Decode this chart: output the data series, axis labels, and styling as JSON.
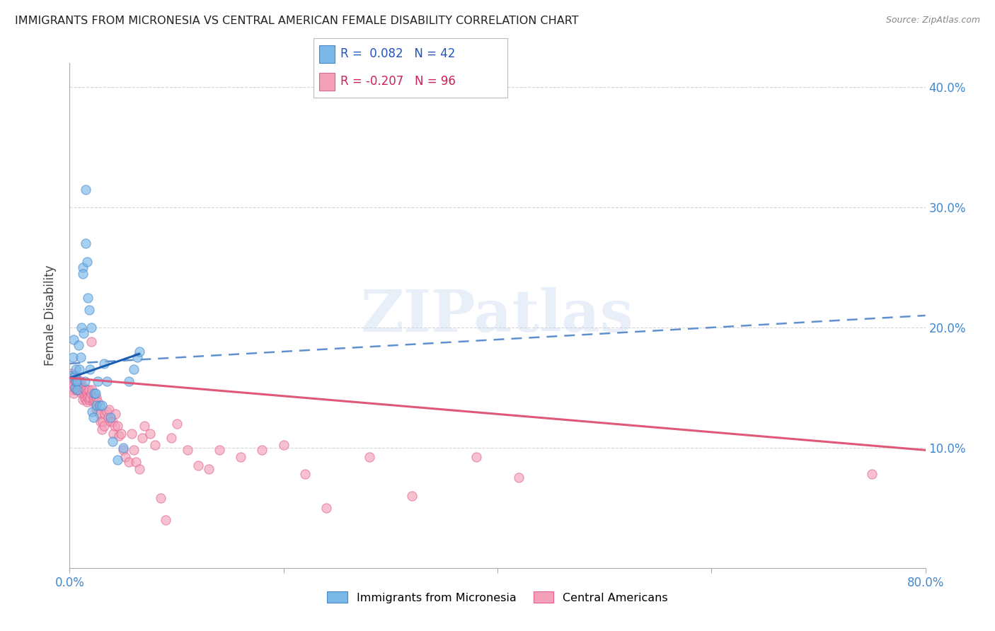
{
  "title": "IMMIGRANTS FROM MICRONESIA VS CENTRAL AMERICAN FEMALE DISABILITY CORRELATION CHART",
  "source": "Source: ZipAtlas.com",
  "ylabel": "Female Disability",
  "xlim": [
    0.0,
    0.8
  ],
  "ylim": [
    0.0,
    0.42
  ],
  "yticks": [
    0.1,
    0.2,
    0.3,
    0.4
  ],
  "xtick_labels": [
    "0.0%",
    "",
    "",
    "",
    "80.0%"
  ],
  "xtick_vals": [
    0.0,
    0.2,
    0.4,
    0.6,
    0.8
  ],
  "legend_entries": [
    {
      "label": "Immigrants from Micronesia",
      "R": "0.082",
      "N": "42"
    },
    {
      "label": "Central Americans",
      "R": "-0.207",
      "N": "96"
    }
  ],
  "blue_scatter_x": [
    0.002,
    0.003,
    0.004,
    0.005,
    0.005,
    0.006,
    0.006,
    0.007,
    0.007,
    0.008,
    0.009,
    0.01,
    0.011,
    0.012,
    0.012,
    0.013,
    0.014,
    0.015,
    0.015,
    0.016,
    0.017,
    0.018,
    0.019,
    0.02,
    0.021,
    0.022,
    0.023,
    0.024,
    0.025,
    0.026,
    0.028,
    0.03,
    0.032,
    0.035,
    0.038,
    0.04,
    0.045,
    0.05,
    0.055,
    0.06,
    0.063,
    0.065
  ],
  "blue_scatter_y": [
    0.16,
    0.175,
    0.19,
    0.16,
    0.15,
    0.165,
    0.155,
    0.155,
    0.148,
    0.185,
    0.165,
    0.175,
    0.2,
    0.25,
    0.245,
    0.195,
    0.155,
    0.27,
    0.315,
    0.255,
    0.225,
    0.215,
    0.165,
    0.2,
    0.13,
    0.125,
    0.145,
    0.145,
    0.135,
    0.155,
    0.135,
    0.135,
    0.17,
    0.155,
    0.125,
    0.105,
    0.09,
    0.1,
    0.155,
    0.165,
    0.175,
    0.18
  ],
  "pink_scatter_x": [
    0.001,
    0.002,
    0.002,
    0.003,
    0.003,
    0.004,
    0.004,
    0.005,
    0.005,
    0.006,
    0.006,
    0.006,
    0.007,
    0.007,
    0.007,
    0.008,
    0.008,
    0.009,
    0.009,
    0.01,
    0.01,
    0.01,
    0.011,
    0.011,
    0.012,
    0.012,
    0.013,
    0.013,
    0.014,
    0.014,
    0.015,
    0.015,
    0.016,
    0.016,
    0.017,
    0.017,
    0.018,
    0.018,
    0.019,
    0.02,
    0.02,
    0.021,
    0.022,
    0.022,
    0.023,
    0.024,
    0.025,
    0.025,
    0.026,
    0.027,
    0.028,
    0.029,
    0.03,
    0.031,
    0.032,
    0.033,
    0.035,
    0.036,
    0.037,
    0.038,
    0.04,
    0.041,
    0.042,
    0.043,
    0.045,
    0.046,
    0.048,
    0.05,
    0.052,
    0.055,
    0.058,
    0.06,
    0.062,
    0.065,
    0.068,
    0.07,
    0.075,
    0.08,
    0.085,
    0.09,
    0.095,
    0.1,
    0.11,
    0.12,
    0.13,
    0.14,
    0.16,
    0.18,
    0.2,
    0.22,
    0.24,
    0.28,
    0.32,
    0.38,
    0.42,
    0.75
  ],
  "pink_scatter_y": [
    0.158,
    0.155,
    0.162,
    0.148,
    0.158,
    0.152,
    0.145,
    0.158,
    0.15,
    0.148,
    0.155,
    0.16,
    0.148,
    0.155,
    0.15,
    0.148,
    0.152,
    0.148,
    0.155,
    0.15,
    0.148,
    0.155,
    0.15,
    0.145,
    0.148,
    0.14,
    0.145,
    0.15,
    0.142,
    0.148,
    0.148,
    0.14,
    0.145,
    0.138,
    0.142,
    0.148,
    0.148,
    0.14,
    0.142,
    0.188,
    0.145,
    0.148,
    0.142,
    0.138,
    0.14,
    0.138,
    0.132,
    0.142,
    0.138,
    0.13,
    0.128,
    0.122,
    0.115,
    0.122,
    0.118,
    0.128,
    0.13,
    0.125,
    0.132,
    0.122,
    0.122,
    0.112,
    0.118,
    0.128,
    0.118,
    0.11,
    0.112,
    0.098,
    0.092,
    0.088,
    0.112,
    0.098,
    0.088,
    0.082,
    0.108,
    0.118,
    0.112,
    0.102,
    0.058,
    0.04,
    0.108,
    0.12,
    0.098,
    0.085,
    0.082,
    0.098,
    0.092,
    0.098,
    0.102,
    0.078,
    0.05,
    0.092,
    0.06,
    0.092,
    0.075,
    0.078
  ],
  "blue_line_x": [
    0.0,
    0.065
  ],
  "blue_line_y": [
    0.158,
    0.178
  ],
  "dashed_line_x": [
    0.0,
    0.8
  ],
  "dashed_line_y": [
    0.17,
    0.21
  ],
  "pink_line_x": [
    0.0,
    0.8
  ],
  "pink_line_y": [
    0.158,
    0.098
  ],
  "blue_line_color": "#1a5cb0",
  "dashed_line_color": "#6090d0",
  "pink_line_color": "#e05878",
  "scatter_blue_color": "#7ab8e8",
  "scatter_blue_edge": "#4488cc",
  "scatter_pink_color": "#f4a0b8",
  "scatter_pink_edge": "#e06090",
  "scatter_size": 90,
  "scatter_alpha": 0.65,
  "background_color": "#ffffff",
  "grid_color": "#cccccc",
  "title_color": "#222222",
  "axis_label_color": "#444444",
  "tick_color": "#4488cc",
  "watermark": "ZIPatlas",
  "watermark_color": "#c8d8f0",
  "watermark_alpha": 0.4
}
